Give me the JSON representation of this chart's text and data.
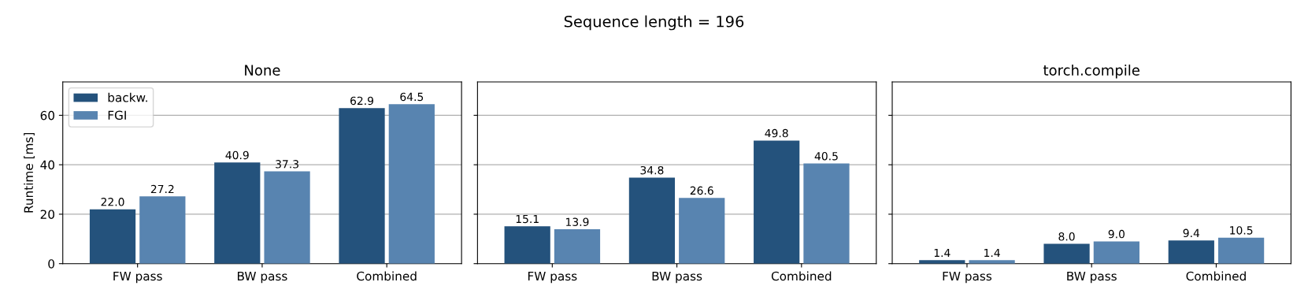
{
  "chart_data": [
    {
      "type": "bar",
      "title": "None",
      "ylabel": "Runtime [ms]",
      "annotations": [
        "Sequence length = 196"
      ],
      "categories": [
        "FW pass",
        "BW pass",
        "Combined"
      ],
      "series": [
        {
          "name": "backw.",
          "color": "#24527c",
          "values": [
            22.0,
            40.9,
            62.9
          ],
          "value_labels": [
            "22.0",
            "40.9",
            "62.9"
          ]
        },
        {
          "name": "FGI",
          "color": "#5884b0",
          "values": [
            27.2,
            37.3,
            64.5
          ],
          "value_labels": [
            "27.2",
            "37.3",
            "64.5"
          ]
        }
      ],
      "ylim": [
        0,
        73.5
      ],
      "yticks": [
        0,
        20,
        40,
        60
      ],
      "grid": "y",
      "legend": "top left"
    },
    {
      "type": "bar",
      "categories": [
        "FW pass",
        "BW pass",
        "Combined"
      ],
      "series": [
        {
          "color": "#24527c",
          "values": [
            15.1,
            34.8,
            49.8
          ],
          "value_labels": [
            "15.1",
            "34.8",
            "49.8"
          ]
        },
        {
          "color": "#5884b0",
          "values": [
            13.9,
            26.6,
            40.5
          ],
          "value_labels": [
            "13.9",
            "26.6",
            "40.5"
          ]
        }
      ],
      "ylim": [
        0,
        73.5
      ],
      "yticks": [
        0,
        20,
        40,
        60
      ],
      "grid": "y",
      "tick_labels": "x"
    },
    {
      "type": "bar",
      "title": "torch.compile",
      "categories": [
        "FW pass",
        "BW pass",
        "Combined"
      ],
      "series": [
        {
          "color": "#24527c",
          "values": [
            1.4,
            8.0,
            9.4
          ],
          "value_labels": [
            "1.4",
            "8.0",
            "9.4"
          ]
        },
        {
          "color": "#5884b0",
          "values": [
            1.4,
            9.0,
            10.5
          ],
          "value_labels": [
            "1.4",
            "9.0",
            "10.5"
          ]
        }
      ],
      "ylim": [
        0,
        73.5
      ],
      "yticks": [
        0,
        20,
        40,
        60
      ],
      "grid": "y",
      "tick_labels": "x"
    }
  ]
}
